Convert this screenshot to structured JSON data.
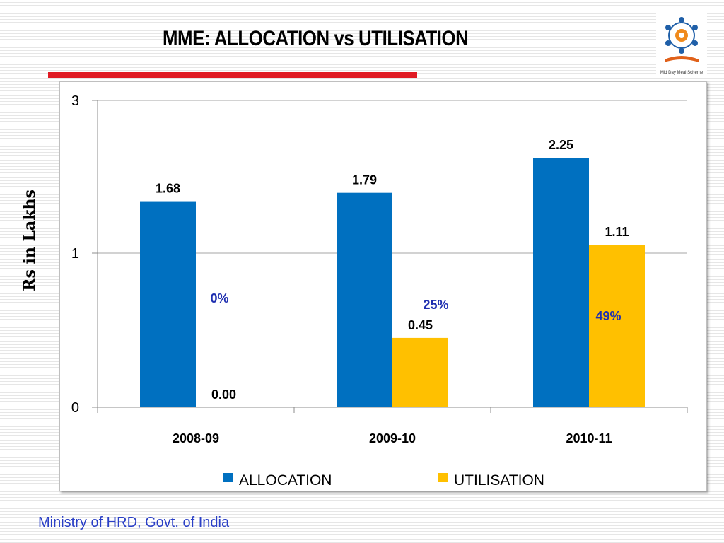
{
  "slide": {
    "title": "MME: ALLOCATION vs UTILISATION",
    "footer": "Ministry of HRD, Govt. of India",
    "accent_color": "#e01b24"
  },
  "chart_data": {
    "type": "bar",
    "categories": [
      "2008-09",
      "2009-10",
      "2010-11"
    ],
    "series": [
      {
        "name": "ALLOCATION",
        "values": [
          1.68,
          1.79,
          2.25
        ],
        "labels": [
          "1.68",
          "1.79",
          "2.25"
        ],
        "color": "#0070c0"
      },
      {
        "name": "UTILISATION",
        "values": [
          0.0,
          0.45,
          1.11
        ],
        "labels": [
          "0.00",
          "0.45",
          "1.11"
        ],
        "color": "#ffc000"
      }
    ],
    "percent_annotations": [
      "0%",
      "25%",
      "49%"
    ],
    "percent_color": "#1f2fb0",
    "ylabel": "Rs in Lakhs",
    "yticks": [
      "0",
      "1",
      "3"
    ],
    "legend_position": "bottom",
    "grid": "horizontal"
  }
}
